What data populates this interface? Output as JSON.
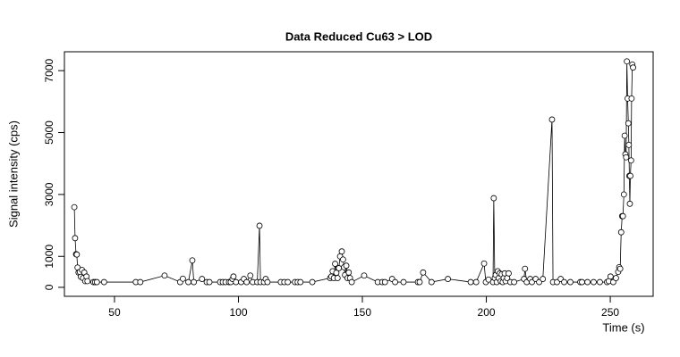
{
  "chart_data": {
    "type": "line",
    "markers": true,
    "title": "Data Reduced Cu63 > LOD",
    "x_label": "Time (s)",
    "y_label": "Signal intensity (cps)",
    "xlim": [
      29.8,
      267.3
    ],
    "xticks": [
      50,
      100,
      150,
      200,
      250
    ],
    "ylim": [
      -290,
      7610
    ],
    "yticks": [
      0,
      1000,
      3000,
      5000,
      7000
    ],
    "series": [
      {
        "name": "Cu63",
        "color": "#000000",
        "x": [
          33.8,
          34.1,
          34.5,
          34.8,
          35.1,
          35.5,
          36.0,
          36.4,
          36.9,
          37.3,
          37.8,
          38.2,
          38.7,
          39.1,
          41.5,
          42.2,
          42.9,
          45.8,
          58.6,
          60.4,
          70.2,
          76.5,
          77.6,
          79.8,
          81.4,
          82.0,
          85.3,
          87.2,
          88.3,
          92.6,
          93.7,
          94.8,
          96.2,
          96.9,
          97.6,
          98.0,
          99.0,
          101.1,
          102.2,
          103.3,
          104.8,
          105.8,
          107.6,
          108.5,
          108.9,
          110.3,
          111.0,
          111.7,
          117.1,
          118.5,
          119.9,
          122.8,
          123.9,
          125.0,
          129.8,
          137.0,
          137.5,
          138.0,
          138.5,
          139.0,
          139.5,
          140.0,
          140.5,
          141.0,
          141.7,
          142.2,
          142.6,
          143.0,
          143.5,
          144.0,
          144.5,
          145.0,
          145.7,
          150.7,
          156.2,
          158.0,
          159.1,
          162.0,
          163.2,
          166.6,
          172.4,
          173.1,
          174.5,
          177.9,
          184.5,
          193.7,
          195.9,
          199.1,
          199.8,
          200.9,
          202.7,
          203.0,
          203.4,
          203.8,
          204.2,
          204.6,
          205.0,
          205.4,
          205.8,
          206.2,
          206.6,
          207.0,
          207.4,
          207.8,
          208.4,
          209.0,
          209.7,
          211.2,
          215.2,
          215.6,
          216.3,
          217.7,
          218.4,
          219.9,
          221.3,
          222.8,
          226.5,
          226.9,
          228.5,
          230.0,
          231.4,
          233.9,
          237.9,
          238.6,
          240.8,
          243.3,
          245.8,
          248.7,
          249.4,
          250.1,
          251.2,
          252.3,
          253.2,
          253.6,
          254.0,
          254.4,
          254.8,
          255.1,
          255.5,
          255.8,
          256.1,
          256.4,
          256.7,
          257.0,
          257.3,
          257.5,
          257.7,
          257.9,
          258.1,
          258.4,
          258.6,
          258.9,
          259.2
        ],
        "values": [
          2590,
          1590,
          1070,
          1060,
          640,
          480,
          500,
          340,
          560,
          300,
          480,
          200,
          350,
          200,
          170,
          170,
          170,
          170,
          170,
          170,
          380,
          170,
          280,
          170,
          870,
          170,
          270,
          170,
          170,
          170,
          170,
          170,
          170,
          170,
          270,
          350,
          170,
          170,
          270,
          170,
          380,
          170,
          170,
          1990,
          170,
          170,
          270,
          170,
          170,
          170,
          170,
          170,
          170,
          170,
          170,
          300,
          350,
          520,
          300,
          760,
          470,
          300,
          620,
          1000,
          1160,
          900,
          650,
          400,
          700,
          300,
          480,
          300,
          170,
          380,
          170,
          170,
          170,
          270,
          170,
          170,
          170,
          170,
          480,
          170,
          270,
          170,
          170,
          770,
          170,
          250,
          170,
          2880,
          300,
          400,
          170,
          520,
          300,
          450,
          200,
          420,
          170,
          300,
          450,
          200,
          300,
          450,
          170,
          170,
          270,
          600,
          170,
          270,
          170,
          270,
          170,
          270,
          5420,
          170,
          170,
          270,
          170,
          170,
          170,
          170,
          170,
          170,
          170,
          170,
          200,
          350,
          170,
          300,
          500,
          650,
          600,
          1780,
          2300,
          2300,
          3000,
          4900,
          4300,
          4200,
          7300,
          6100,
          5300,
          4600,
          3600,
          2700,
          3600,
          4100,
          6100,
          7200,
          7100
        ]
      }
    ]
  }
}
